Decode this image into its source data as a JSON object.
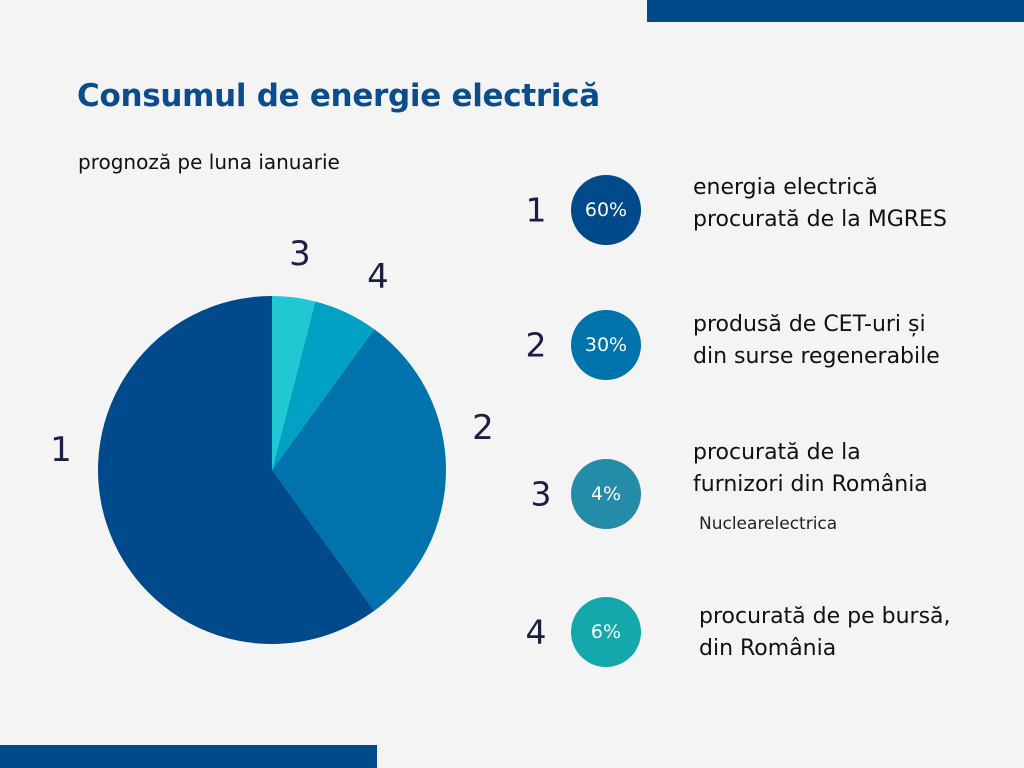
{
  "header": {
    "title": "Consumul de energie electrică",
    "subtitle": "prognoză pe luna ianuarie"
  },
  "colors": {
    "decor_bar": "#004a8a",
    "slice_1": "#00498a",
    "slice_2": "#0072ac",
    "slice_3": "#1fc8d3",
    "slice_4": "#00a1c3",
    "circle_3": "#248ca8",
    "circle_4": "#14a8ac"
  },
  "chart_data": {
    "type": "pie",
    "slices": [
      {
        "label": "1",
        "value": 60
      },
      {
        "label": "2",
        "value": 30
      },
      {
        "label": "3",
        "value": 4
      },
      {
        "label": "4",
        "value": 6
      }
    ],
    "order_clockwise_from_top": [
      "3",
      "4",
      "2",
      "1"
    ]
  },
  "legend": {
    "items": [
      {
        "number": "1",
        "percent": "60%",
        "lines": [
          "energia electrică",
          "procurată de la MGRES"
        ]
      },
      {
        "number": "2",
        "percent": "30%",
        "lines": [
          "produsă de CET-uri și",
          "din surse regenerabile"
        ]
      },
      {
        "number": "3",
        "percent": "4%",
        "lines": [
          "procurată de la",
          "furnizori din România"
        ],
        "note": "Nuclearelectrica"
      },
      {
        "number": "4",
        "percent": "6%",
        "lines": [
          "procurată de pe bursă,",
          "din România"
        ]
      }
    ]
  }
}
